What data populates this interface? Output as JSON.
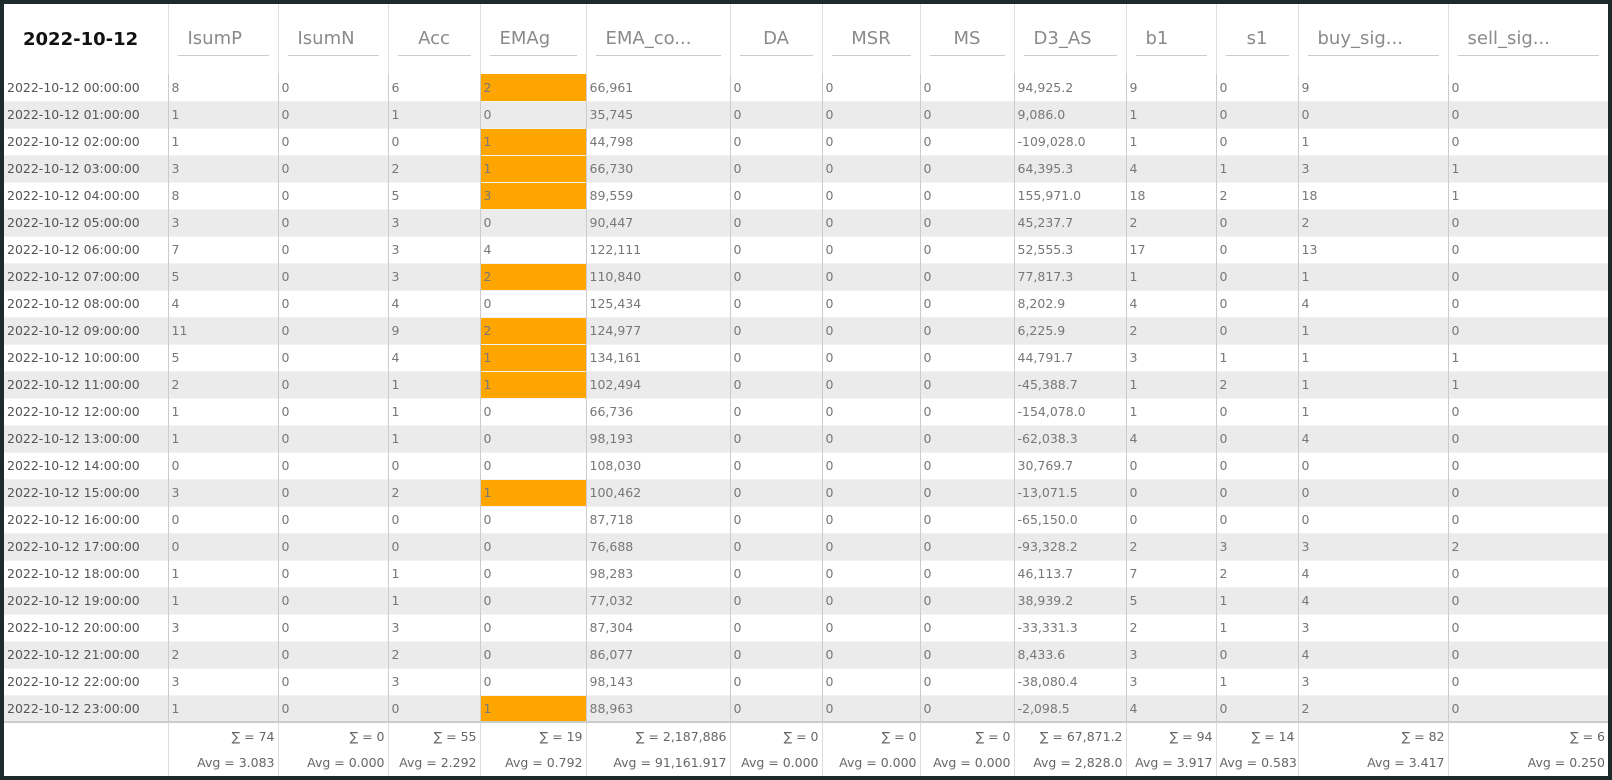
{
  "header": {
    "title": "2022-10-12",
    "columns": [
      "IsumP",
      "IsumN",
      "Acc",
      "EMAg",
      "EMA_co...",
      "DA",
      "MSR",
      "MS",
      "D3_AS",
      "b1",
      "s1",
      "buy_sig...",
      "sell_sig..."
    ]
  },
  "table": {
    "rows": [
      [
        "2022-10-12 00:00:00",
        "8",
        "0",
        "6",
        "2",
        "66,961",
        "0",
        "0",
        "0",
        "94,925.2",
        "9",
        "0",
        "9",
        "0"
      ],
      [
        "2022-10-12 01:00:00",
        "1",
        "0",
        "1",
        "0",
        "35,745",
        "0",
        "0",
        "0",
        "9,086.0",
        "1",
        "0",
        "0",
        "0"
      ],
      [
        "2022-10-12 02:00:00",
        "1",
        "0",
        "0",
        "1",
        "44,798",
        "0",
        "0",
        "0",
        "-109,028.0",
        "1",
        "0",
        "1",
        "0"
      ],
      [
        "2022-10-12 03:00:00",
        "3",
        "0",
        "2",
        "1",
        "66,730",
        "0",
        "0",
        "0",
        "64,395.3",
        "4",
        "1",
        "3",
        "1"
      ],
      [
        "2022-10-12 04:00:00",
        "8",
        "0",
        "5",
        "3",
        "89,559",
        "0",
        "0",
        "0",
        "155,971.0",
        "18",
        "2",
        "18",
        "1"
      ],
      [
        "2022-10-12 05:00:00",
        "3",
        "0",
        "3",
        "0",
        "90,447",
        "0",
        "0",
        "0",
        "45,237.7",
        "2",
        "0",
        "2",
        "0"
      ],
      [
        "2022-10-12 06:00:00",
        "7",
        "0",
        "3",
        "4",
        "122,111",
        "0",
        "0",
        "0",
        "52,555.3",
        "17",
        "0",
        "13",
        "0"
      ],
      [
        "2022-10-12 07:00:00",
        "5",
        "0",
        "3",
        "2",
        "110,840",
        "0",
        "0",
        "0",
        "77,817.3",
        "1",
        "0",
        "1",
        "0"
      ],
      [
        "2022-10-12 08:00:00",
        "4",
        "0",
        "4",
        "0",
        "125,434",
        "0",
        "0",
        "0",
        "8,202.9",
        "4",
        "0",
        "4",
        "0"
      ],
      [
        "2022-10-12 09:00:00",
        "11",
        "0",
        "9",
        "2",
        "124,977",
        "0",
        "0",
        "0",
        "6,225.9",
        "2",
        "0",
        "1",
        "0"
      ],
      [
        "2022-10-12 10:00:00",
        "5",
        "0",
        "4",
        "1",
        "134,161",
        "0",
        "0",
        "0",
        "44,791.7",
        "3",
        "1",
        "1",
        "1"
      ],
      [
        "2022-10-12 11:00:00",
        "2",
        "0",
        "1",
        "1",
        "102,494",
        "0",
        "0",
        "0",
        "-45,388.7",
        "1",
        "2",
        "1",
        "1"
      ],
      [
        "2022-10-12 12:00:00",
        "1",
        "0",
        "1",
        "0",
        "66,736",
        "0",
        "0",
        "0",
        "-154,078.0",
        "1",
        "0",
        "1",
        "0"
      ],
      [
        "2022-10-12 13:00:00",
        "1",
        "0",
        "1",
        "0",
        "98,193",
        "0",
        "0",
        "0",
        "-62,038.3",
        "4",
        "0",
        "4",
        "0"
      ],
      [
        "2022-10-12 14:00:00",
        "0",
        "0",
        "0",
        "0",
        "108,030",
        "0",
        "0",
        "0",
        "30,769.7",
        "0",
        "0",
        "0",
        "0"
      ],
      [
        "2022-10-12 15:00:00",
        "3",
        "0",
        "2",
        "1",
        "100,462",
        "0",
        "0",
        "0",
        "-13,071.5",
        "0",
        "0",
        "0",
        "0"
      ],
      [
        "2022-10-12 16:00:00",
        "0",
        "0",
        "0",
        "0",
        "87,718",
        "0",
        "0",
        "0",
        "-65,150.0",
        "0",
        "0",
        "0",
        "0"
      ],
      [
        "2022-10-12 17:00:00",
        "0",
        "0",
        "0",
        "0",
        "76,688",
        "0",
        "0",
        "0",
        "-93,328.2",
        "2",
        "3",
        "3",
        "2"
      ],
      [
        "2022-10-12 18:00:00",
        "1",
        "0",
        "1",
        "0",
        "98,283",
        "0",
        "0",
        "0",
        "46,113.7",
        "7",
        "2",
        "4",
        "0"
      ],
      [
        "2022-10-12 19:00:00",
        "1",
        "0",
        "1",
        "0",
        "77,032",
        "0",
        "0",
        "0",
        "38,939.2",
        "5",
        "1",
        "4",
        "0"
      ],
      [
        "2022-10-12 20:00:00",
        "3",
        "0",
        "3",
        "0",
        "87,304",
        "0",
        "0",
        "0",
        "-33,331.3",
        "2",
        "1",
        "3",
        "0"
      ],
      [
        "2022-10-12 21:00:00",
        "2",
        "0",
        "2",
        "0",
        "86,077",
        "0",
        "0",
        "0",
        "8,433.6",
        "3",
        "0",
        "4",
        "0"
      ],
      [
        "2022-10-12 22:00:00",
        "3",
        "0",
        "3",
        "0",
        "98,143",
        "0",
        "0",
        "0",
        "-38,080.4",
        "3",
        "1",
        "3",
        "0"
      ],
      [
        "2022-10-12 23:00:00",
        "1",
        "0",
        "0",
        "1",
        "88,963",
        "0",
        "0",
        "0",
        "-2,098.5",
        "4",
        "0",
        "2",
        "0"
      ]
    ],
    "highlight": {
      "column": 4,
      "color": "#ffa500",
      "rows": [
        0,
        2,
        3,
        4,
        7,
        9,
        10,
        11,
        15,
        23
      ]
    }
  },
  "footer": {
    "sums": [
      "∑ = 74",
      "∑ = 0",
      "∑ = 55",
      "∑ = 19",
      "∑ = 2,187,886",
      "∑ = 0",
      "∑ = 0",
      "∑ = 0",
      "∑ = 67,871.2",
      "∑ = 94",
      "∑ = 14",
      "∑ = 82",
      "∑ = 6"
    ],
    "averages": [
      "Avg = 3.083",
      "Avg = 0.000",
      "Avg = 2.292",
      "Avg = 0.792",
      "Avg = 91,161.917",
      "Avg = 0.000",
      "Avg = 0.000",
      "Avg = 0.000",
      "Avg = 2,828.0",
      "Avg = 3.917",
      "Avg = 0.583",
      "Avg = 3.417",
      "Avg = 0.250"
    ]
  }
}
